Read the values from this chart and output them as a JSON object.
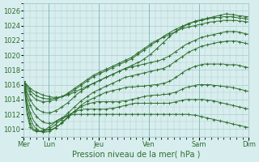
{
  "background_color": "#d8eeee",
  "grid_color": "#aacccc",
  "line_color": "#2d6e2d",
  "xlabel": "Pression niveau de la mer( hPa )",
  "ylim": [
    1009,
    1027
  ],
  "yticks": [
    1010,
    1012,
    1014,
    1016,
    1018,
    1020,
    1022,
    1024,
    1026
  ],
  "day_labels": [
    "Mer",
    "Lun",
    "Jeu",
    "Ven",
    "Sam",
    "Dim"
  ],
  "day_positions": [
    0,
    24,
    72,
    120,
    168,
    216
  ],
  "total_hours": 216,
  "series": [
    [
      1016.5,
      1016.0,
      1015.5,
      1015.2,
      1015.0,
      1014.8,
      1014.6,
      1014.5,
      1014.4,
      1014.3,
      1014.3,
      1014.3,
      1014.4,
      1014.5,
      1014.6,
      1014.8,
      1015.0,
      1015.2,
      1015.4,
      1015.6,
      1015.8,
      1016.0,
      1016.2,
      1016.4,
      1016.6,
      1016.8,
      1017.0,
      1017.2,
      1017.4,
      1017.6,
      1017.8,
      1018.0,
      1018.2,
      1018.4,
      1018.6,
      1018.8,
      1019.0,
      1019.2,
      1019.5,
      1019.8,
      1020.1,
      1020.5,
      1020.9,
      1021.3,
      1021.7,
      1022.1,
      1022.5,
      1022.9,
      1023.2,
      1023.5,
      1023.8,
      1024.0,
      1024.2,
      1024.4,
      1024.6,
      1024.7,
      1024.8,
      1024.9,
      1025.0,
      1025.1,
      1025.2,
      1025.3,
      1025.4,
      1025.5,
      1025.6,
      1025.5,
      1025.5,
      1025.4,
      1025.3,
      1025.3,
      1025.2,
      1025.2
    ],
    [
      1016.5,
      1015.8,
      1015.2,
      1014.8,
      1014.5,
      1014.3,
      1014.2,
      1014.1,
      1014.1,
      1014.1,
      1014.2,
      1014.3,
      1014.4,
      1014.6,
      1014.8,
      1015.0,
      1015.3,
      1015.6,
      1015.9,
      1016.2,
      1016.5,
      1016.8,
      1017.1,
      1017.3,
      1017.5,
      1017.7,
      1017.9,
      1018.1,
      1018.3,
      1018.5,
      1018.7,
      1018.9,
      1019.1,
      1019.3,
      1019.5,
      1019.8,
      1020.1,
      1020.4,
      1020.7,
      1021.0,
      1021.3,
      1021.6,
      1021.9,
      1022.2,
      1022.5,
      1022.8,
      1023.0,
      1023.3,
      1023.5,
      1023.7,
      1023.9,
      1024.1,
      1024.3,
      1024.4,
      1024.5,
      1024.6,
      1024.7,
      1024.8,
      1024.9,
      1025.0,
      1025.0,
      1025.1,
      1025.1,
      1025.2,
      1025.2,
      1025.2,
      1025.2,
      1025.1,
      1025.0,
      1025.0,
      1024.9,
      1024.9
    ],
    [
      1016.5,
      1015.5,
      1014.8,
      1014.3,
      1014.0,
      1013.8,
      1013.7,
      1013.7,
      1013.8,
      1013.9,
      1014.0,
      1014.2,
      1014.4,
      1014.6,
      1014.9,
      1015.2,
      1015.5,
      1015.8,
      1016.1,
      1016.4,
      1016.7,
      1017.0,
      1017.3,
      1017.5,
      1017.7,
      1017.9,
      1018.1,
      1018.3,
      1018.5,
      1018.7,
      1018.9,
      1019.1,
      1019.3,
      1019.5,
      1019.7,
      1020.0,
      1020.3,
      1020.6,
      1020.9,
      1021.2,
      1021.5,
      1021.8,
      1022.0,
      1022.2,
      1022.4,
      1022.6,
      1022.8,
      1023.0,
      1023.2,
      1023.4,
      1023.6,
      1023.7,
      1023.8,
      1023.9,
      1024.0,
      1024.1,
      1024.2,
      1024.3,
      1024.4,
      1024.5,
      1024.5,
      1024.6,
      1024.6,
      1024.7,
      1024.7,
      1024.7,
      1024.7,
      1024.7,
      1024.6,
      1024.6,
      1024.5,
      1024.5
    ],
    [
      1016.5,
      1015.0,
      1014.0,
      1013.3,
      1012.8,
      1012.5,
      1012.3,
      1012.2,
      1012.2,
      1012.3,
      1012.5,
      1012.7,
      1013.0,
      1013.3,
      1013.6,
      1014.0,
      1014.4,
      1014.8,
      1015.1,
      1015.4,
      1015.7,
      1016.0,
      1016.2,
      1016.4,
      1016.6,
      1016.8,
      1017.0,
      1017.2,
      1017.4,
      1017.6,
      1017.8,
      1018.0,
      1018.2,
      1018.3,
      1018.4,
      1018.5,
      1018.6,
      1018.7,
      1018.8,
      1018.9,
      1019.0,
      1019.1,
      1019.2,
      1019.3,
      1019.5,
      1019.7,
      1019.9,
      1020.2,
      1020.5,
      1020.8,
      1021.1,
      1021.4,
      1021.6,
      1021.8,
      1022.0,
      1022.2,
      1022.4,
      1022.5,
      1022.6,
      1022.7,
      1022.8,
      1022.9,
      1023.0,
      1023.1,
      1023.2,
      1023.2,
      1023.2,
      1023.2,
      1023.1,
      1023.0,
      1022.9,
      1022.8
    ],
    [
      1016.5,
      1014.5,
      1013.2,
      1012.3,
      1011.7,
      1011.3,
      1011.0,
      1010.8,
      1010.8,
      1010.8,
      1011.0,
      1011.2,
      1011.5,
      1011.8,
      1012.2,
      1012.6,
      1013.0,
      1013.4,
      1013.8,
      1014.1,
      1014.4,
      1014.7,
      1015.0,
      1015.2,
      1015.4,
      1015.6,
      1015.8,
      1016.0,
      1016.2,
      1016.4,
      1016.6,
      1016.8,
      1017.0,
      1017.1,
      1017.2,
      1017.3,
      1017.4,
      1017.5,
      1017.6,
      1017.7,
      1017.8,
      1017.9,
      1018.0,
      1018.1,
      1018.2,
      1018.4,
      1018.6,
      1018.9,
      1019.2,
      1019.5,
      1019.8,
      1020.1,
      1020.4,
      1020.6,
      1020.8,
      1021.0,
      1021.2,
      1021.3,
      1021.4,
      1021.5,
      1021.6,
      1021.7,
      1021.8,
      1021.8,
      1021.9,
      1021.9,
      1021.9,
      1021.9,
      1021.8,
      1021.7,
      1021.6,
      1021.5
    ],
    [
      1016.5,
      1013.8,
      1012.2,
      1011.2,
      1010.6,
      1010.2,
      1010.0,
      1009.9,
      1009.9,
      1010.0,
      1010.2,
      1010.5,
      1010.8,
      1011.2,
      1011.6,
      1012.0,
      1012.4,
      1012.8,
      1013.2,
      1013.5,
      1013.8,
      1014.0,
      1014.2,
      1014.4,
      1014.6,
      1014.8,
      1015.0,
      1015.1,
      1015.2,
      1015.3,
      1015.4,
      1015.5,
      1015.6,
      1015.7,
      1015.7,
      1015.7,
      1015.8,
      1015.8,
      1015.8,
      1015.9,
      1015.9,
      1016.0,
      1016.0,
      1016.1,
      1016.2,
      1016.3,
      1016.5,
      1016.7,
      1017.0,
      1017.3,
      1017.6,
      1017.9,
      1018.1,
      1018.3,
      1018.5,
      1018.6,
      1018.7,
      1018.8,
      1018.8,
      1018.8,
      1018.8,
      1018.8,
      1018.8,
      1018.8,
      1018.7,
      1018.7,
      1018.7,
      1018.7,
      1018.6,
      1018.5,
      1018.4,
      1018.3
    ],
    [
      1016.5,
      1013.2,
      1011.5,
      1010.5,
      1010.0,
      1009.7,
      1009.6,
      1009.6,
      1009.7,
      1009.9,
      1010.2,
      1010.5,
      1010.9,
      1011.3,
      1011.7,
      1012.1,
      1012.4,
      1012.7,
      1013.0,
      1013.2,
      1013.4,
      1013.5,
      1013.6,
      1013.7,
      1013.7,
      1013.7,
      1013.7,
      1013.7,
      1013.7,
      1013.7,
      1013.7,
      1013.8,
      1013.8,
      1013.9,
      1014.0,
      1014.1,
      1014.2,
      1014.3,
      1014.4,
      1014.5,
      1014.5,
      1014.6,
      1014.6,
      1014.6,
      1014.7,
      1014.7,
      1014.8,
      1014.9,
      1015.0,
      1015.2,
      1015.4,
      1015.6,
      1015.7,
      1015.8,
      1015.9,
      1016.0,
      1016.0,
      1016.0,
      1016.0,
      1016.0,
      1015.9,
      1015.9,
      1015.8,
      1015.8,
      1015.7,
      1015.7,
      1015.6,
      1015.5,
      1015.4,
      1015.3,
      1015.2,
      1015.1
    ],
    [
      1016.5,
      1012.5,
      1010.8,
      1010.0,
      1009.8,
      1009.7,
      1009.7,
      1009.8,
      1010.0,
      1010.3,
      1010.6,
      1011.0,
      1011.3,
      1011.6,
      1011.9,
      1012.1,
      1012.3,
      1012.5,
      1012.6,
      1012.7,
      1012.7,
      1012.7,
      1012.7,
      1012.7,
      1012.7,
      1012.7,
      1012.7,
      1012.8,
      1012.8,
      1012.9,
      1013.0,
      1013.1,
      1013.2,
      1013.3,
      1013.4,
      1013.5,
      1013.5,
      1013.5,
      1013.5,
      1013.5,
      1013.5,
      1013.5,
      1013.5,
      1013.5,
      1013.5,
      1013.5,
      1013.5,
      1013.6,
      1013.7,
      1013.8,
      1013.9,
      1014.0,
      1014.0,
      1014.0,
      1014.0,
      1014.0,
      1014.0,
      1014.0,
      1013.9,
      1013.9,
      1013.8,
      1013.7,
      1013.6,
      1013.5,
      1013.4,
      1013.3,
      1013.2,
      1013.1,
      1013.0,
      1012.9,
      1012.8,
      1012.7
    ],
    [
      1016.5,
      1012.0,
      1010.3,
      1009.8,
      1009.7,
      1009.7,
      1009.8,
      1010.0,
      1010.3,
      1010.6,
      1011.0,
      1011.3,
      1011.5,
      1011.7,
      1011.8,
      1011.9,
      1012.0,
      1012.0,
      1012.0,
      1012.0,
      1012.0,
      1012.0,
      1012.0,
      1012.0,
      1012.0,
      1012.0,
      1012.0,
      1012.0,
      1012.0,
      1012.0,
      1012.0,
      1012.0,
      1012.0,
      1012.0,
      1012.0,
      1012.0,
      1012.0,
      1012.0,
      1012.0,
      1012.0,
      1012.0,
      1012.0,
      1012.0,
      1012.0,
      1012.0,
      1012.0,
      1012.0,
      1012.0,
      1012.0,
      1012.0,
      1012.0,
      1012.0,
      1012.0,
      1011.9,
      1011.9,
      1011.8,
      1011.7,
      1011.6,
      1011.5,
      1011.4,
      1011.3,
      1011.2,
      1011.1,
      1011.0,
      1010.9,
      1010.8,
      1010.7,
      1010.6,
      1010.5,
      1010.4,
      1010.3,
      1010.2
    ]
  ]
}
